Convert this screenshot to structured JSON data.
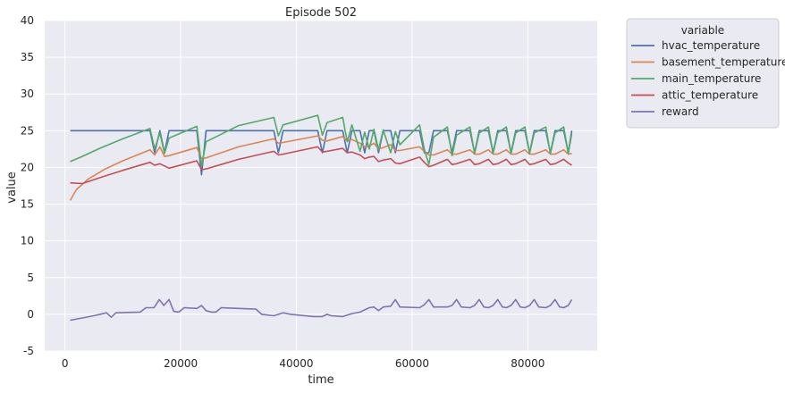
{
  "chart_data": {
    "type": "line",
    "title": "Episode 502",
    "xlabel": "time",
    "ylabel": "value",
    "xlim": [
      -3500,
      92000
    ],
    "ylim": [
      -5,
      40
    ],
    "xticks": [
      0,
      20000,
      40000,
      60000,
      80000
    ],
    "yticks": [
      -5,
      0,
      5,
      10,
      15,
      20,
      25,
      30,
      35,
      40
    ],
    "grid": true,
    "legend": {
      "title": "variable",
      "placement": "outside-top-right"
    },
    "series": [
      {
        "name": "hvac_temperature",
        "color": "#4c72b0",
        "points": [
          [
            900,
            25
          ],
          [
            14700,
            25
          ],
          [
            15500,
            22
          ],
          [
            16400,
            25
          ],
          [
            17200,
            22
          ],
          [
            18000,
            25
          ],
          [
            22800,
            25
          ],
          [
            23600,
            19
          ],
          [
            24400,
            25
          ],
          [
            36100,
            25
          ],
          [
            36900,
            22
          ],
          [
            37700,
            25
          ],
          [
            43700,
            25
          ],
          [
            44500,
            22
          ],
          [
            45300,
            25
          ],
          [
            48000,
            25
          ],
          [
            48800,
            22
          ],
          [
            49600,
            25
          ],
          [
            51000,
            25
          ],
          [
            51800,
            22
          ],
          [
            52600,
            25
          ],
          [
            53400,
            25
          ],
          [
            54200,
            22
          ],
          [
            55000,
            25
          ],
          [
            56300,
            25
          ],
          [
            57100,
            22
          ],
          [
            57900,
            25
          ],
          [
            61300,
            25
          ],
          [
            62100,
            22
          ],
          [
            62900,
            22
          ],
          [
            63700,
            25
          ],
          [
            66100,
            25
          ],
          [
            66900,
            22
          ],
          [
            67700,
            25
          ],
          [
            70000,
            25
          ],
          [
            70800,
            22
          ],
          [
            71600,
            25
          ],
          [
            73200,
            25
          ],
          [
            74000,
            22
          ],
          [
            74800,
            25
          ],
          [
            76300,
            25
          ],
          [
            77100,
            22
          ],
          [
            77900,
            25
          ],
          [
            79500,
            25
          ],
          [
            80300,
            22
          ],
          [
            81100,
            25
          ],
          [
            83100,
            25
          ],
          [
            83900,
            22
          ],
          [
            84700,
            25
          ],
          [
            86200,
            25
          ],
          [
            87000,
            22
          ],
          [
            87600,
            25
          ]
        ]
      },
      {
        "name": "basement_temperature",
        "color": "#dd8452",
        "points": [
          [
            900,
            15.5
          ],
          [
            2000,
            17
          ],
          [
            4000,
            18.4
          ],
          [
            7000,
            19.8
          ],
          [
            10000,
            20.9
          ],
          [
            14700,
            22.4
          ],
          [
            15500,
            21.7
          ],
          [
            16400,
            22.8
          ],
          [
            17200,
            21.5
          ],
          [
            18000,
            21.6
          ],
          [
            22800,
            22.7
          ],
          [
            23600,
            21.2
          ],
          [
            24400,
            21.3
          ],
          [
            30000,
            22.8
          ],
          [
            36100,
            23.9
          ],
          [
            36900,
            23.3
          ],
          [
            37700,
            23.4
          ],
          [
            43700,
            24.3
          ],
          [
            44500,
            23.7
          ],
          [
            45300,
            23.6
          ],
          [
            48000,
            24.2
          ],
          [
            48800,
            23.6
          ],
          [
            49600,
            23.8
          ],
          [
            51000,
            23.3
          ],
          [
            51800,
            22.8
          ],
          [
            52600,
            22.9
          ],
          [
            53400,
            23.3
          ],
          [
            54200,
            22.5
          ],
          [
            55000,
            22.7
          ],
          [
            56300,
            23.1
          ],
          [
            57100,
            22.3
          ],
          [
            57900,
            22.3
          ],
          [
            61300,
            22.8
          ],
          [
            62100,
            22.2
          ],
          [
            62900,
            21.7
          ],
          [
            63700,
            21.7
          ],
          [
            66100,
            22.4
          ],
          [
            66900,
            21.8
          ],
          [
            67700,
            21.8
          ],
          [
            70000,
            22.4
          ],
          [
            70800,
            21.8
          ],
          [
            71600,
            21.8
          ],
          [
            73200,
            22.4
          ],
          [
            74000,
            21.8
          ],
          [
            74800,
            21.8
          ],
          [
            76300,
            22.4
          ],
          [
            77100,
            21.8
          ],
          [
            77900,
            21.8
          ],
          [
            79500,
            22.4
          ],
          [
            80300,
            21.8
          ],
          [
            81100,
            21.8
          ],
          [
            83100,
            22.4
          ],
          [
            83900,
            21.8
          ],
          [
            84700,
            21.8
          ],
          [
            86200,
            22.4
          ],
          [
            87000,
            21.8
          ],
          [
            87600,
            21.9
          ]
        ]
      },
      {
        "name": "main_temperature",
        "color": "#55a868",
        "points": [
          [
            900,
            20.8
          ],
          [
            3000,
            21.5
          ],
          [
            6000,
            22.6
          ],
          [
            10000,
            23.9
          ],
          [
            14700,
            25.3
          ],
          [
            15500,
            22.5
          ],
          [
            16400,
            24.7
          ],
          [
            17200,
            21.9
          ],
          [
            18000,
            24
          ],
          [
            22800,
            25.6
          ],
          [
            23600,
            20.2
          ],
          [
            24400,
            23.5
          ],
          [
            30000,
            25.7
          ],
          [
            36100,
            26.8
          ],
          [
            36900,
            24.3
          ],
          [
            37700,
            25.8
          ],
          [
            43700,
            27.1
          ],
          [
            44500,
            24.4
          ],
          [
            45300,
            26.1
          ],
          [
            48000,
            26.8
          ],
          [
            48800,
            23.5
          ],
          [
            49600,
            25.8
          ],
          [
            51000,
            22.2
          ],
          [
            51800,
            24.8
          ],
          [
            52600,
            22.5
          ],
          [
            53400,
            25.2
          ],
          [
            54200,
            22.4
          ],
          [
            55000,
            25.1
          ],
          [
            56300,
            22
          ],
          [
            57100,
            24.9
          ],
          [
            57900,
            23.1
          ],
          [
            61300,
            25.8
          ],
          [
            62100,
            22.5
          ],
          [
            62900,
            20.4
          ],
          [
            63700,
            24.1
          ],
          [
            66100,
            25.5
          ],
          [
            66900,
            21.6
          ],
          [
            67700,
            24.4
          ],
          [
            70000,
            25.5
          ],
          [
            70800,
            21.9
          ],
          [
            71600,
            24.7
          ],
          [
            73200,
            25.5
          ],
          [
            74000,
            21.9
          ],
          [
            74800,
            24.7
          ],
          [
            76300,
            25.5
          ],
          [
            77100,
            21.9
          ],
          [
            77900,
            24.7
          ],
          [
            79500,
            25.5
          ],
          [
            80300,
            21.9
          ],
          [
            81100,
            24.7
          ],
          [
            83100,
            25.5
          ],
          [
            83900,
            21.9
          ],
          [
            84700,
            24.7
          ],
          [
            86200,
            25.5
          ],
          [
            87000,
            21.9
          ],
          [
            87600,
            24.6
          ]
        ]
      },
      {
        "name": "attic_temperature",
        "color": "#c44e52",
        "points": [
          [
            900,
            17.9
          ],
          [
            3000,
            17.8
          ],
          [
            6000,
            18.6
          ],
          [
            10000,
            19.6
          ],
          [
            14700,
            20.7
          ],
          [
            15500,
            20.3
          ],
          [
            16400,
            20.5
          ],
          [
            17200,
            20.2
          ],
          [
            18000,
            19.9
          ],
          [
            22800,
            20.9
          ],
          [
            23600,
            19.7
          ],
          [
            24400,
            19.8
          ],
          [
            30000,
            21.1
          ],
          [
            36100,
            22.2
          ],
          [
            36900,
            21.7
          ],
          [
            37700,
            21.8
          ],
          [
            43700,
            22.8
          ],
          [
            44500,
            22.1
          ],
          [
            45300,
            22.2
          ],
          [
            48000,
            22.6
          ],
          [
            48800,
            22
          ],
          [
            49600,
            22.1
          ],
          [
            51000,
            21.7
          ],
          [
            51800,
            21.2
          ],
          [
            52600,
            21.4
          ],
          [
            53400,
            21.5
          ],
          [
            54200,
            20.8
          ],
          [
            55000,
            21
          ],
          [
            56300,
            21.2
          ],
          [
            57100,
            20.6
          ],
          [
            57900,
            20.5
          ],
          [
            61300,
            21.4
          ],
          [
            62100,
            20.7
          ],
          [
            62900,
            20.1
          ],
          [
            63700,
            20.3
          ],
          [
            66100,
            21.1
          ],
          [
            66900,
            20.4
          ],
          [
            67700,
            20.5
          ],
          [
            70000,
            21.1
          ],
          [
            70800,
            20.4
          ],
          [
            71600,
            20.5
          ],
          [
            73200,
            21.1
          ],
          [
            74000,
            20.4
          ],
          [
            74800,
            20.5
          ],
          [
            76300,
            21.1
          ],
          [
            77100,
            20.4
          ],
          [
            77900,
            20.5
          ],
          [
            79500,
            21.1
          ],
          [
            80300,
            20.4
          ],
          [
            81100,
            20.5
          ],
          [
            83100,
            21.1
          ],
          [
            83900,
            20.4
          ],
          [
            84700,
            20.5
          ],
          [
            86200,
            21.1
          ],
          [
            87000,
            20.6
          ],
          [
            87600,
            20.3
          ]
        ]
      },
      {
        "name": "reward",
        "color": "#8172b3",
        "points": [
          [
            900,
            -0.8
          ],
          [
            3000,
            -0.5
          ],
          [
            5000,
            -0.2
          ],
          [
            7200,
            0.2
          ],
          [
            8000,
            -0.4
          ],
          [
            8800,
            0.2
          ],
          [
            13000,
            0.3
          ],
          [
            14000,
            0.9
          ],
          [
            15400,
            0.9
          ],
          [
            16300,
            2
          ],
          [
            17100,
            1.2
          ],
          [
            18000,
            2
          ],
          [
            18800,
            0.4
          ],
          [
            19700,
            0.3
          ],
          [
            20600,
            0.9
          ],
          [
            22800,
            0.8
          ],
          [
            23600,
            1.2
          ],
          [
            24400,
            0.5
          ],
          [
            25300,
            0.3
          ],
          [
            26100,
            0.3
          ],
          [
            27000,
            0.9
          ],
          [
            33000,
            0.7
          ],
          [
            34000,
            0
          ],
          [
            36100,
            -0.2
          ],
          [
            37700,
            0.2
          ],
          [
            39000,
            0
          ],
          [
            43000,
            -0.3
          ],
          [
            44500,
            -0.3
          ],
          [
            45300,
            0
          ],
          [
            46000,
            -0.2
          ],
          [
            48000,
            -0.3
          ],
          [
            49600,
            0.1
          ],
          [
            51000,
            0.3
          ],
          [
            52600,
            0.9
          ],
          [
            53400,
            1
          ],
          [
            54200,
            0.5
          ],
          [
            55000,
            1
          ],
          [
            56300,
            1.1
          ],
          [
            57100,
            2
          ],
          [
            57900,
            1
          ],
          [
            61300,
            0.9
          ],
          [
            62100,
            1.3
          ],
          [
            62900,
            2
          ],
          [
            63700,
            1
          ],
          [
            66100,
            1
          ],
          [
            66900,
            1.2
          ],
          [
            67700,
            2
          ],
          [
            68500,
            1
          ],
          [
            70000,
            0.9
          ],
          [
            70800,
            1.2
          ],
          [
            71600,
            2
          ],
          [
            72400,
            1
          ],
          [
            73200,
            0.9
          ],
          [
            74000,
            1.2
          ],
          [
            74800,
            2
          ],
          [
            75600,
            1
          ],
          [
            76300,
            0.9
          ],
          [
            77100,
            1.2
          ],
          [
            77900,
            2
          ],
          [
            78700,
            1
          ],
          [
            79500,
            0.9
          ],
          [
            80300,
            1.2
          ],
          [
            81100,
            2
          ],
          [
            81900,
            1
          ],
          [
            83100,
            0.9
          ],
          [
            83900,
            1.2
          ],
          [
            84700,
            2
          ],
          [
            85500,
            1
          ],
          [
            86200,
            0.9
          ],
          [
            87000,
            1.2
          ],
          [
            87600,
            2
          ]
        ]
      }
    ]
  }
}
